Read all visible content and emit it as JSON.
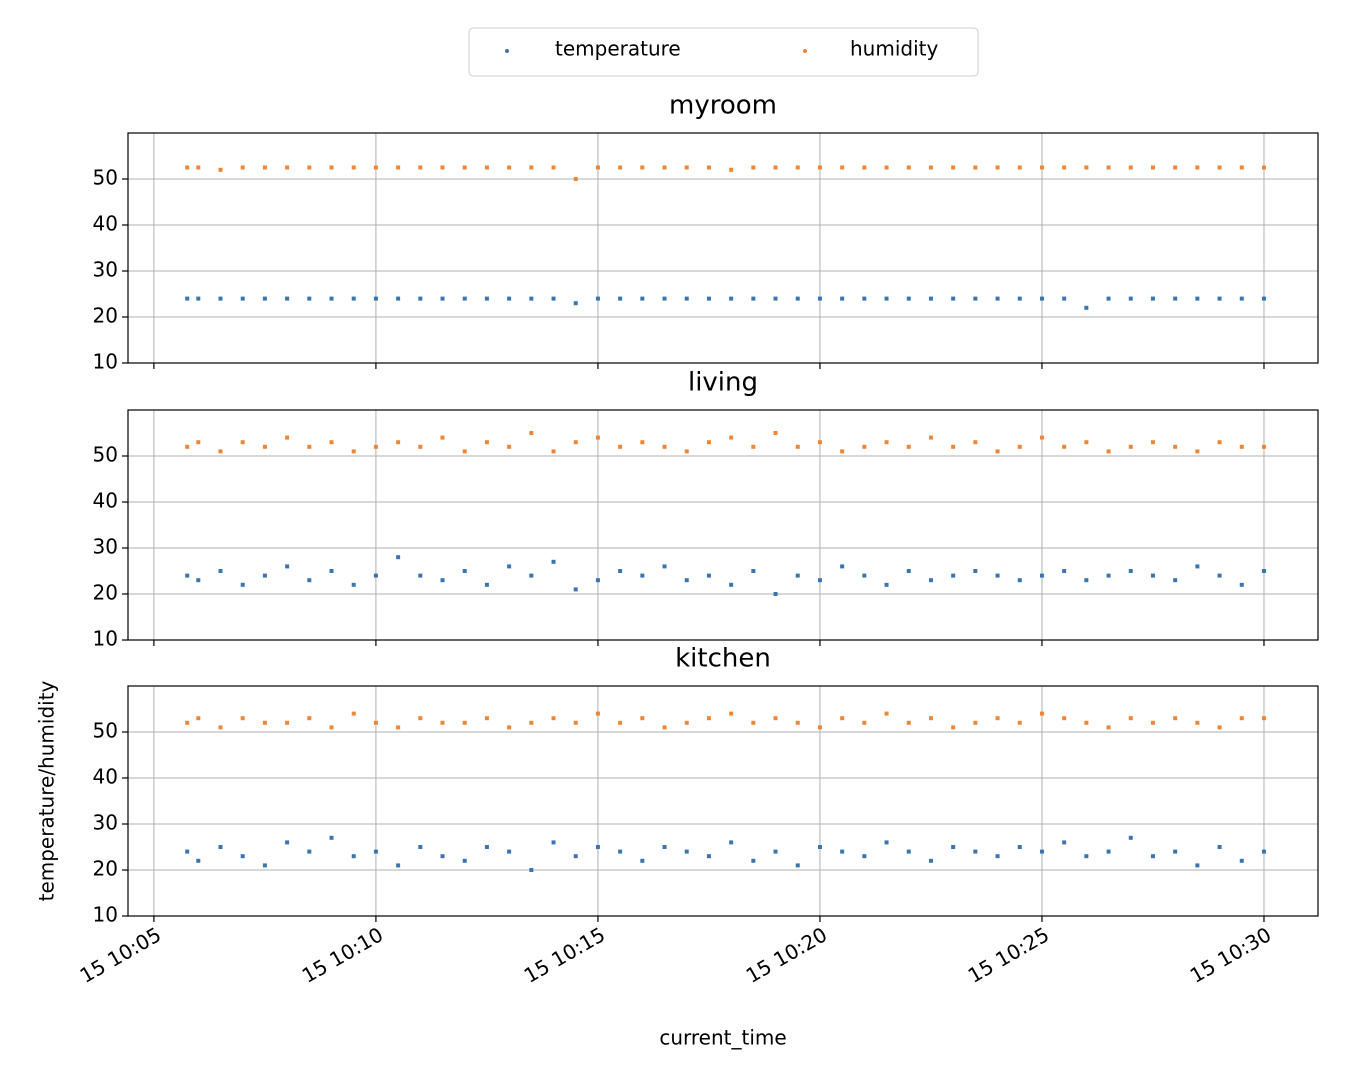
{
  "chart_data": [
    {
      "type": "scatter",
      "title": "myroom",
      "x": [
        "15 10:05:45",
        "15 10:06:00",
        "15 10:06:30",
        "15 10:07:00",
        "15 10:07:30",
        "15 10:08:00",
        "15 10:08:30",
        "15 10:09:00",
        "15 10:09:30",
        "15 10:10:00",
        "15 10:10:30",
        "15 10:11:00",
        "15 10:11:30",
        "15 10:12:00",
        "15 10:12:30",
        "15 10:13:00",
        "15 10:13:30",
        "15 10:14:00",
        "15 10:14:30",
        "15 10:15:00",
        "15 10:15:30",
        "15 10:16:00",
        "15 10:16:30",
        "15 10:17:00",
        "15 10:17:30",
        "15 10:18:00",
        "15 10:18:30",
        "15 10:19:00",
        "15 10:19:30",
        "15 10:20:00",
        "15 10:20:30",
        "15 10:21:00",
        "15 10:21:30",
        "15 10:22:00",
        "15 10:22:30",
        "15 10:23:00",
        "15 10:23:30",
        "15 10:24:00",
        "15 10:24:30",
        "15 10:25:00",
        "15 10:25:30",
        "15 10:26:00",
        "15 10:26:30",
        "15 10:27:00",
        "15 10:27:30",
        "15 10:28:00",
        "15 10:28:30",
        "15 10:29:00",
        "15 10:29:30",
        "15 10:30:00"
      ],
      "series": [
        {
          "name": "temperature",
          "color": "#3b75af",
          "values": [
            24,
            24,
            24,
            24,
            24,
            24,
            24,
            24,
            24,
            24,
            24,
            24,
            24,
            24,
            24,
            24,
            24,
            24,
            23,
            24,
            24,
            24,
            24,
            24,
            24,
            24,
            24,
            24,
            24,
            24,
            24,
            24,
            24,
            24,
            24,
            24,
            24,
            24,
            24,
            24,
            24,
            22,
            24,
            24,
            24,
            24,
            24,
            24,
            24,
            24
          ]
        },
        {
          "name": "humidity",
          "color": "#ef8636",
          "values": [
            52.5,
            52.5,
            52,
            52.5,
            52.5,
            52.5,
            52.5,
            52.5,
            52.5,
            52.5,
            52.5,
            52.5,
            52.5,
            52.5,
            52.5,
            52.5,
            52.5,
            52.5,
            50,
            52.5,
            52.5,
            52.5,
            52.5,
            52.5,
            52.5,
            52,
            52.5,
            52.5,
            52.5,
            52.5,
            52.5,
            52.5,
            52.5,
            52.5,
            52.5,
            52.5,
            52.5,
            52.5,
            52.5,
            52.5,
            52.5,
            52.5,
            52.5,
            52.5,
            52.5,
            52.5,
            52.5,
            52.5,
            52.5,
            52.5
          ]
        }
      ],
      "xlim": [
        "15 10:04:25",
        "15 10:31:13"
      ],
      "xticks": [
        "15 10:05",
        "15 10:10",
        "15 10:15",
        "15 10:20",
        "15 10:25",
        "15 10:30"
      ],
      "ylim": [
        10,
        60
      ],
      "yticks": [
        10,
        20,
        30,
        40,
        50
      ],
      "grid": true
    },
    {
      "type": "scatter",
      "title": "living",
      "x": [
        "15 10:05:45",
        "15 10:06:00",
        "15 10:06:30",
        "15 10:07:00",
        "15 10:07:30",
        "15 10:08:00",
        "15 10:08:30",
        "15 10:09:00",
        "15 10:09:30",
        "15 10:10:00",
        "15 10:10:30",
        "15 10:11:00",
        "15 10:11:30",
        "15 10:12:00",
        "15 10:12:30",
        "15 10:13:00",
        "15 10:13:30",
        "15 10:14:00",
        "15 10:14:30",
        "15 10:15:00",
        "15 10:15:30",
        "15 10:16:00",
        "15 10:16:30",
        "15 10:17:00",
        "15 10:17:30",
        "15 10:18:00",
        "15 10:18:30",
        "15 10:19:00",
        "15 10:19:30",
        "15 10:20:00",
        "15 10:20:30",
        "15 10:21:00",
        "15 10:21:30",
        "15 10:22:00",
        "15 10:22:30",
        "15 10:23:00",
        "15 10:23:30",
        "15 10:24:00",
        "15 10:24:30",
        "15 10:25:00",
        "15 10:25:30",
        "15 10:26:00",
        "15 10:26:30",
        "15 10:27:00",
        "15 10:27:30",
        "15 10:28:00",
        "15 10:28:30",
        "15 10:29:00",
        "15 10:29:30",
        "15 10:30:00"
      ],
      "series": [
        {
          "name": "temperature",
          "color": "#3b75af",
          "values": [
            24,
            23,
            25,
            22,
            24,
            26,
            23,
            25,
            22,
            24,
            28,
            24,
            23,
            25,
            22,
            26,
            24,
            27,
            21,
            23,
            25,
            24,
            26,
            23,
            24,
            22,
            25,
            20,
            24,
            23,
            26,
            24,
            22,
            25,
            23,
            24,
            25,
            24,
            23,
            24,
            25,
            23,
            24,
            25,
            24,
            23,
            26,
            24,
            22,
            25
          ]
        },
        {
          "name": "humidity",
          "color": "#ef8636",
          "values": [
            52,
            53,
            51,
            53,
            52,
            54,
            52,
            53,
            51,
            52,
            53,
            52,
            54,
            51,
            53,
            52,
            55,
            51,
            53,
            54,
            52,
            53,
            52,
            51,
            53,
            54,
            52,
            55,
            52,
            53,
            51,
            52,
            53,
            52,
            54,
            52,
            53,
            51,
            52,
            54,
            52,
            53,
            51,
            52,
            53,
            52,
            51,
            53,
            52,
            52
          ]
        }
      ],
      "xlim": [
        "15 10:04:25",
        "15 10:31:13"
      ],
      "xticks": [
        "15 10:05",
        "15 10:10",
        "15 10:15",
        "15 10:20",
        "15 10:25",
        "15 10:30"
      ],
      "ylim": [
        10,
        60
      ],
      "yticks": [
        10,
        20,
        30,
        40,
        50
      ],
      "grid": true
    },
    {
      "type": "scatter",
      "title": "kitchen",
      "xlabel": "current_time",
      "ylabel": "temperature/humidity",
      "x": [
        "15 10:05:45",
        "15 10:06:00",
        "15 10:06:30",
        "15 10:07:00",
        "15 10:07:30",
        "15 10:08:00",
        "15 10:08:30",
        "15 10:09:00",
        "15 10:09:30",
        "15 10:10:00",
        "15 10:10:30",
        "15 10:11:00",
        "15 10:11:30",
        "15 10:12:00",
        "15 10:12:30",
        "15 10:13:00",
        "15 10:13:30",
        "15 10:14:00",
        "15 10:14:30",
        "15 10:15:00",
        "15 10:15:30",
        "15 10:16:00",
        "15 10:16:30",
        "15 10:17:00",
        "15 10:17:30",
        "15 10:18:00",
        "15 10:18:30",
        "15 10:19:00",
        "15 10:19:30",
        "15 10:20:00",
        "15 10:20:30",
        "15 10:21:00",
        "15 10:21:30",
        "15 10:22:00",
        "15 10:22:30",
        "15 10:23:00",
        "15 10:23:30",
        "15 10:24:00",
        "15 10:24:30",
        "15 10:25:00",
        "15 10:25:30",
        "15 10:26:00",
        "15 10:26:30",
        "15 10:27:00",
        "15 10:27:30",
        "15 10:28:00",
        "15 10:28:30",
        "15 10:29:00",
        "15 10:29:30",
        "15 10:30:00"
      ],
      "series": [
        {
          "name": "temperature",
          "color": "#3b75af",
          "values": [
            24,
            22,
            25,
            23,
            21,
            26,
            24,
            27,
            23,
            24,
            21,
            25,
            23,
            22,
            25,
            24,
            20,
            26,
            23,
            25,
            24,
            22,
            25,
            24,
            23,
            26,
            22,
            24,
            21,
            25,
            24,
            23,
            26,
            24,
            22,
            25,
            24,
            23,
            25,
            24,
            26,
            23,
            24,
            27,
            23,
            24,
            21,
            25,
            22,
            24
          ]
        },
        {
          "name": "humidity",
          "color": "#ef8636",
          "values": [
            52,
            53,
            51,
            53,
            52,
            52,
            53,
            51,
            54,
            52,
            51,
            53,
            52,
            52,
            53,
            51,
            52,
            53,
            52,
            54,
            52,
            53,
            51,
            52,
            53,
            54,
            52,
            53,
            52,
            51,
            53,
            52,
            54,
            52,
            53,
            51,
            52,
            53,
            52,
            54,
            53,
            52,
            51,
            53,
            52,
            53,
            52,
            51,
            53,
            53
          ]
        }
      ],
      "xlim": [
        "15 10:04:25",
        "15 10:31:13"
      ],
      "xticks": [
        "15 10:05",
        "15 10:10",
        "15 10:15",
        "15 10:20",
        "15 10:25",
        "15 10:30"
      ],
      "ylim": [
        10,
        60
      ],
      "yticks": [
        10,
        20,
        30,
        40,
        50
      ],
      "grid": true
    }
  ]
}
